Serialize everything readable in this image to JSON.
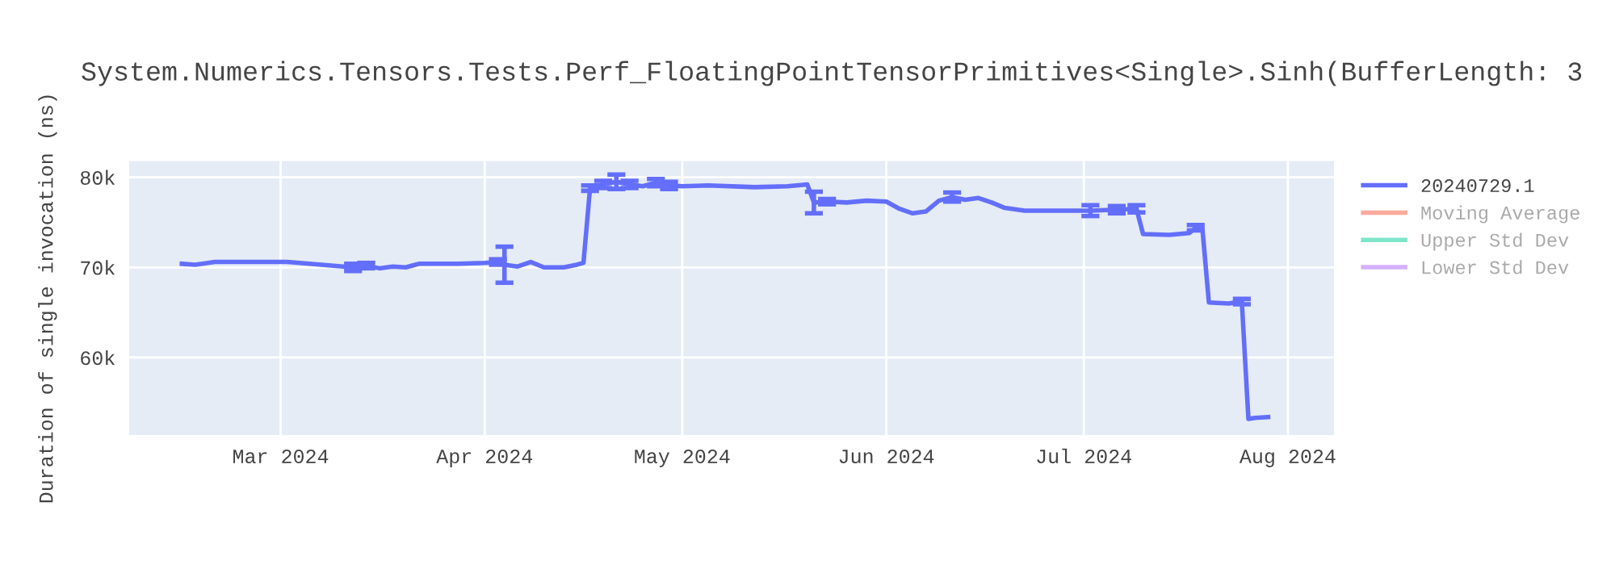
{
  "chart_data": {
    "type": "line",
    "title": "System.Numerics.Tensors.Tests.Perf_FloatingPointTensorPrimitives<Single>.Sinh(BufferLength: 3",
    "ylabel": "Duration of single invocation (ns)",
    "x": [
      "2024-02-15",
      "2024-02-17",
      "2024-02-20",
      "2024-02-28",
      "2024-03-02",
      "2024-03-12",
      "2024-03-14",
      "2024-03-16",
      "2024-03-18",
      "2024-03-20",
      "2024-03-22",
      "2024-03-24",
      "2024-03-28",
      "2024-04-01",
      "2024-04-03",
      "2024-04-04",
      "2024-04-06",
      "2024-04-08",
      "2024-04-10",
      "2024-04-13",
      "2024-04-15",
      "2024-04-16",
      "2024-04-17",
      "2024-04-19",
      "2024-04-21",
      "2024-04-23",
      "2024-04-25",
      "2024-04-27",
      "2024-04-29",
      "2024-05-01",
      "2024-05-05",
      "2024-05-12",
      "2024-05-17",
      "2024-05-20",
      "2024-05-21",
      "2024-05-23",
      "2024-05-26",
      "2024-05-29",
      "2024-06-01",
      "2024-06-03",
      "2024-06-05",
      "2024-06-07",
      "2024-06-09",
      "2024-06-11",
      "2024-06-13",
      "2024-06-15",
      "2024-06-17",
      "2024-06-19",
      "2024-06-22",
      "2024-06-26",
      "2024-06-29",
      "2024-07-02",
      "2024-07-06",
      "2024-07-09",
      "2024-07-10",
      "2024-07-14",
      "2024-07-17",
      "2024-07-18",
      "2024-07-19",
      "2024-07-20",
      "2024-07-23",
      "2024-07-25",
      "2024-07-26",
      "2024-07-27",
      "2024-07-29"
    ],
    "series": [
      {
        "name": "20240729.1",
        "color": "#636efa",
        "values": [
          70400,
          70300,
          70600,
          70600,
          70600,
          70000,
          70200,
          69900,
          70100,
          70000,
          70400,
          70400,
          70400,
          70500,
          70600,
          70300,
          70100,
          70600,
          70000,
          70000,
          70300,
          70500,
          78800,
          79200,
          79500,
          79200,
          79000,
          79400,
          79100,
          79000,
          79100,
          78900,
          79000,
          79200,
          77200,
          77300,
          77200,
          77400,
          77300,
          76500,
          76000,
          76200,
          77400,
          77800,
          77500,
          77700,
          77200,
          76600,
          76300,
          76300,
          76300,
          76300,
          76400,
          76500,
          73700,
          73600,
          73800,
          74400,
          74400,
          66100,
          66000,
          66200,
          53200,
          53300,
          53400
        ],
        "errors": [
          null,
          null,
          null,
          null,
          null,
          400,
          300,
          null,
          null,
          null,
          null,
          null,
          null,
          null,
          300,
          2000,
          null,
          null,
          null,
          null,
          null,
          null,
          300,
          400,
          800,
          400,
          null,
          400,
          400,
          null,
          null,
          null,
          null,
          null,
          1200,
          300,
          null,
          null,
          null,
          null,
          null,
          null,
          null,
          500,
          null,
          null,
          null,
          null,
          null,
          null,
          null,
          600,
          400,
          400,
          null,
          null,
          null,
          300,
          null,
          null,
          null,
          300,
          null,
          null,
          null
        ]
      },
      {
        "name": "Moving Average",
        "color": "#ef553b",
        "values": [
          null,
          null,
          null,
          null,
          null,
          null,
          null,
          null,
          null,
          null,
          null,
          null,
          null,
          null,
          null,
          null,
          null,
          null,
          null,
          null,
          null,
          null,
          null,
          null,
          null,
          null,
          null,
          null,
          null,
          null,
          null,
          null,
          null,
          null,
          null,
          null,
          null,
          null,
          null,
          null,
          null,
          null,
          null,
          null,
          null,
          null,
          null,
          null,
          null,
          null,
          null,
          null,
          null,
          null,
          null,
          null,
          null,
          null,
          null,
          null,
          null,
          null,
          null,
          null,
          null
        ]
      },
      {
        "name": "Upper Std Dev",
        "color": "#00cc96",
        "values": [
          null,
          null,
          null,
          null,
          null,
          null,
          null,
          null,
          null,
          null,
          null,
          null,
          null,
          null,
          null,
          null,
          null,
          null,
          null,
          null,
          null,
          null,
          null,
          null,
          null,
          null,
          null,
          null,
          null,
          null,
          null,
          null,
          null,
          null,
          null,
          null,
          null,
          null,
          null,
          null,
          null,
          null,
          null,
          null,
          null,
          null,
          null,
          null,
          null,
          null,
          null,
          null,
          null,
          null,
          null,
          null,
          null,
          null,
          null,
          null,
          null,
          null,
          null,
          null,
          null
        ]
      },
      {
        "name": "Lower Std Dev",
        "color": "#ab63fa",
        "values": [
          null,
          null,
          null,
          null,
          null,
          null,
          null,
          null,
          null,
          null,
          null,
          null,
          null,
          null,
          null,
          null,
          null,
          null,
          null,
          null,
          null,
          null,
          null,
          null,
          null,
          null,
          null,
          null,
          null,
          null,
          null,
          null,
          null,
          null,
          null,
          null,
          null,
          null,
          null,
          null,
          null,
          null,
          null,
          null,
          null,
          null,
          null,
          null,
          null,
          null,
          null,
          null,
          null,
          null,
          null,
          null,
          null,
          null,
          null,
          null,
          null,
          null,
          null,
          null,
          null
        ]
      }
    ],
    "xlim": [
      "2024-02-07",
      "2024-08-08"
    ],
    "xticks": [
      {
        "value": "2024-03-01",
        "label": "Mar 2024"
      },
      {
        "value": "2024-04-01",
        "label": "Apr 2024"
      },
      {
        "value": "2024-05-01",
        "label": "May 2024"
      },
      {
        "value": "2024-06-01",
        "label": "Jun 2024"
      },
      {
        "value": "2024-07-01",
        "label": "Jul 2024"
      },
      {
        "value": "2024-08-01",
        "label": "Aug 2024"
      }
    ],
    "ylim": [
      51400,
      81800
    ],
    "yticks": [
      {
        "value": 60000,
        "label": "60k"
      },
      {
        "value": 70000,
        "label": "70k"
      },
      {
        "value": 80000,
        "label": "80k"
      }
    ],
    "grid": true,
    "legend": "right",
    "marker": "none",
    "line_style": "solid"
  }
}
